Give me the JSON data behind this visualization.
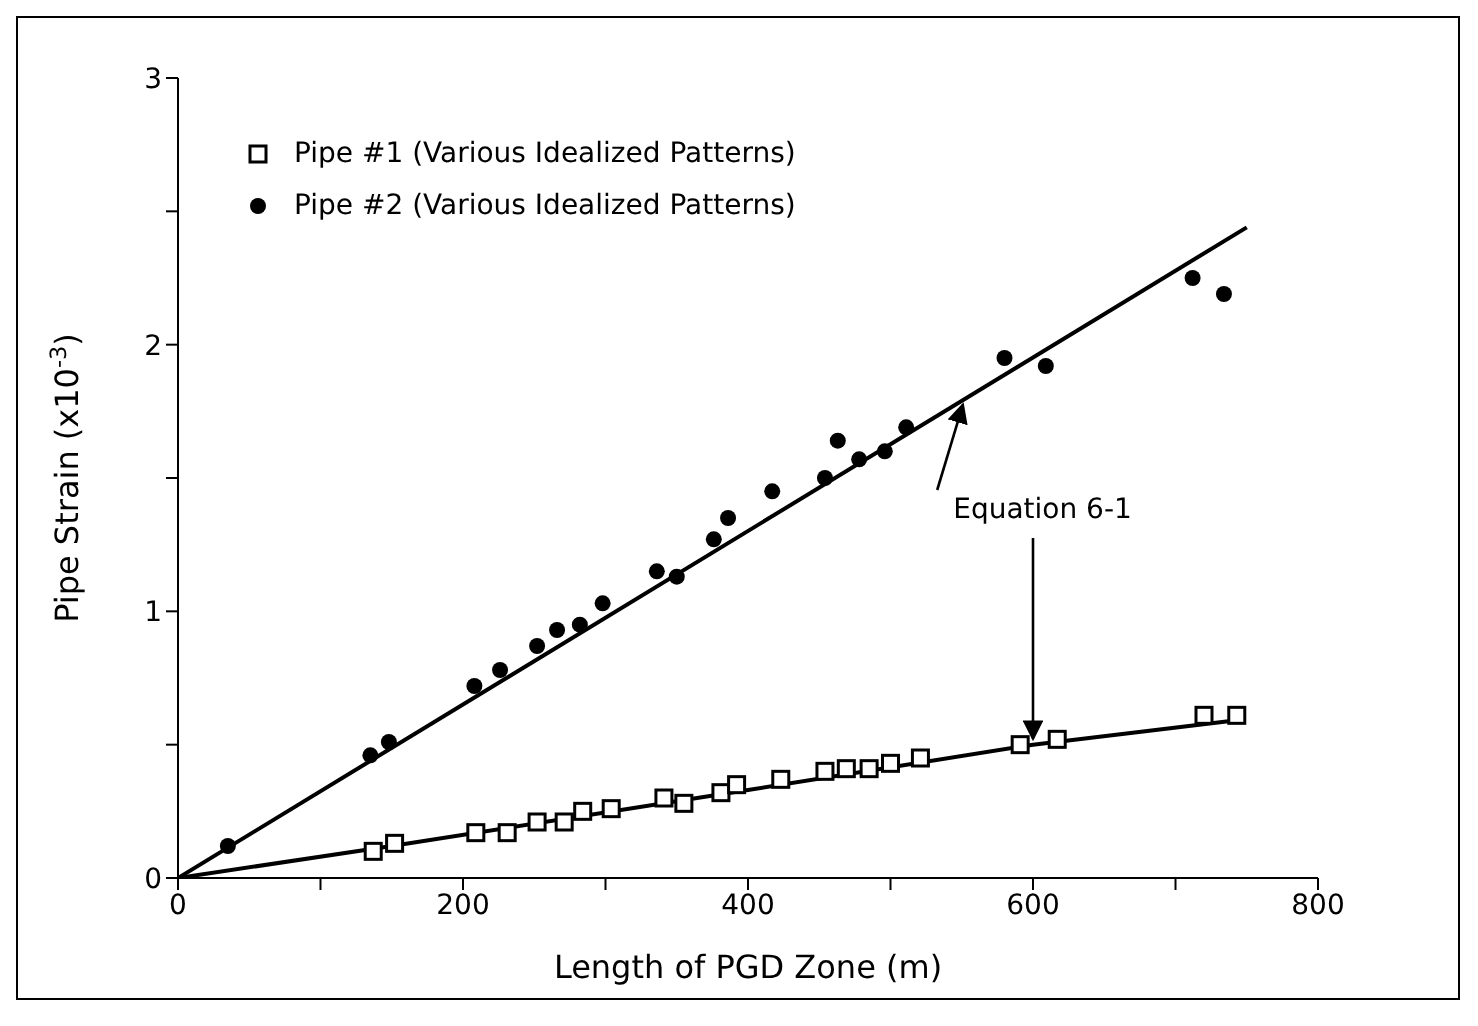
{
  "chart_data": {
    "type": "scatter",
    "xlabel": "Length of PGD Zone (m)",
    "ylabel": "Pipe Strain (x10$^{-3}$)",
    "xlim": [
      0,
      800
    ],
    "xticks": [
      0,
      {
        "value": 100,
        "label": null
      },
      200,
      {
        "value": 300,
        "label": null
      },
      400,
      {
        "value": 500,
        "label": null
      },
      600,
      {
        "value": 700,
        "label": null
      },
      800
    ],
    "ylim": [
      0,
      3
    ],
    "yticks": [
      0,
      {
        "value": 0.5,
        "label": null
      },
      1,
      {
        "value": 1.5,
        "label": null
      },
      2,
      {
        "value": 2.5,
        "label": null
      },
      3
    ],
    "legend": "top left",
    "annotations": [
      {
        "text": "Equation 6-1",
        "x": 600,
        "y": 0.5
      }
    ],
    "series": [
      {
        "name": "Pipe #1 (Various Idealized Patterns)",
        "marker": "square",
        "color": "#000000",
        "x": [
          137,
          152,
          209,
          231,
          252,
          271,
          284,
          304,
          341,
          355,
          381,
          392,
          423,
          454,
          469,
          485,
          500,
          521,
          591,
          617,
          720,
          743
        ],
        "values": [
          0.1,
          0.13,
          0.17,
          0.17,
          0.21,
          0.21,
          0.25,
          0.26,
          0.3,
          0.28,
          0.32,
          0.35,
          0.37,
          0.4,
          0.41,
          0.41,
          0.43,
          0.45,
          0.5,
          0.52,
          0.61,
          0.61
        ]
      },
      {
        "name": "Pipe #2 (Various Idealized Patterns)",
        "marker": "circle",
        "color": "#000000",
        "x": [
          35,
          135,
          148,
          208,
          226,
          252,
          266,
          282,
          298,
          336,
          350,
          376,
          386,
          417,
          454,
          463,
          478,
          496,
          511,
          580,
          609,
          712,
          734
        ],
        "values": [
          0.12,
          0.46,
          0.51,
          0.72,
          0.78,
          0.87,
          0.93,
          0.95,
          1.03,
          1.15,
          1.13,
          1.27,
          1.35,
          1.45,
          1.5,
          1.64,
          1.57,
          1.6,
          1.69,
          1.95,
          1.92,
          2.25,
          2.19
        ]
      },
      {
        "type": "line",
        "marker": "none",
        "color": "#000000",
        "x": [
          0,
          150,
          400,
          600,
          740
        ],
        "values": [
          0,
          0.12,
          0.33,
          0.5,
          0.59
        ]
      },
      {
        "type": "line",
        "marker": "none",
        "color": "#000000",
        "x": [
          0,
          750
        ],
        "values": [
          0,
          2.44
        ]
      }
    ]
  }
}
